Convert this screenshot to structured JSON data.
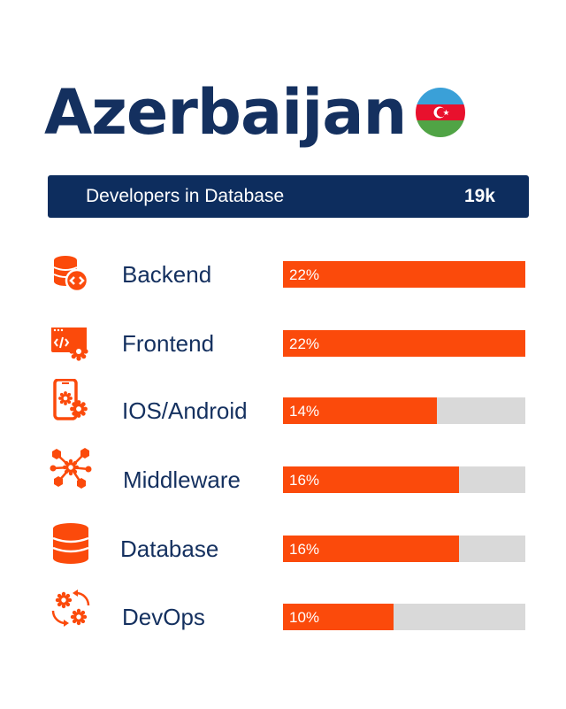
{
  "title": "Azerbaijan",
  "banner": {
    "label": "Developers in Database",
    "value": "19k"
  },
  "colors": {
    "navy": "#0d2d5e",
    "accent": "#fb4a0b",
    "track": "#d9d9d9",
    "flag_blue": "#3aa0d8",
    "flag_red": "#e8112d",
    "flag_green": "#50a445"
  },
  "chart_data": {
    "type": "bar",
    "orientation": "horizontal",
    "categories": [
      "Backend",
      "Frontend",
      "IOS/Android",
      "Middleware",
      "Database",
      "DevOps"
    ],
    "values": [
      22,
      22,
      14,
      16,
      16,
      10
    ],
    "value_labels": [
      "22%",
      "22%",
      "14%",
      "16%",
      "16%",
      "10%"
    ],
    "max_value": 22,
    "icons": [
      "database-code-icon",
      "browser-code-gear-icon",
      "mobile-gear-icon",
      "network-hub-icon",
      "database-icon",
      "gears-cycle-icon"
    ]
  }
}
